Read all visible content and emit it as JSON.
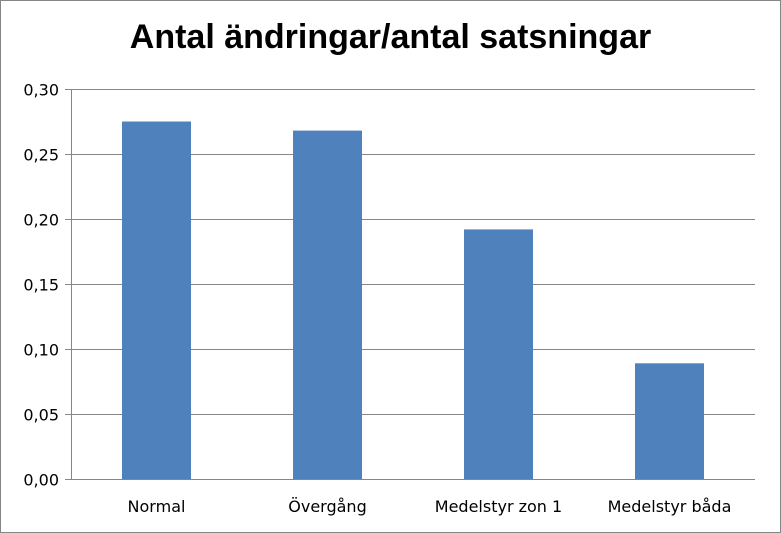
{
  "chart_data": {
    "type": "bar",
    "title": "Antal ändringar/antal satsningar",
    "categories": [
      "Normal",
      "Övergång",
      "Medelstyr zon 1",
      "Medelstyr båda"
    ],
    "values": [
      0.275,
      0.268,
      0.192,
      0.089
    ],
    "yticks": [
      "0,00",
      "0,05",
      "0,10",
      "0,15",
      "0,20",
      "0,25",
      "0,30"
    ],
    "ylim": [
      0,
      0.3
    ],
    "ystep": 0.05,
    "grid": true,
    "legend": "none",
    "bar_color": "#4F81BD"
  }
}
